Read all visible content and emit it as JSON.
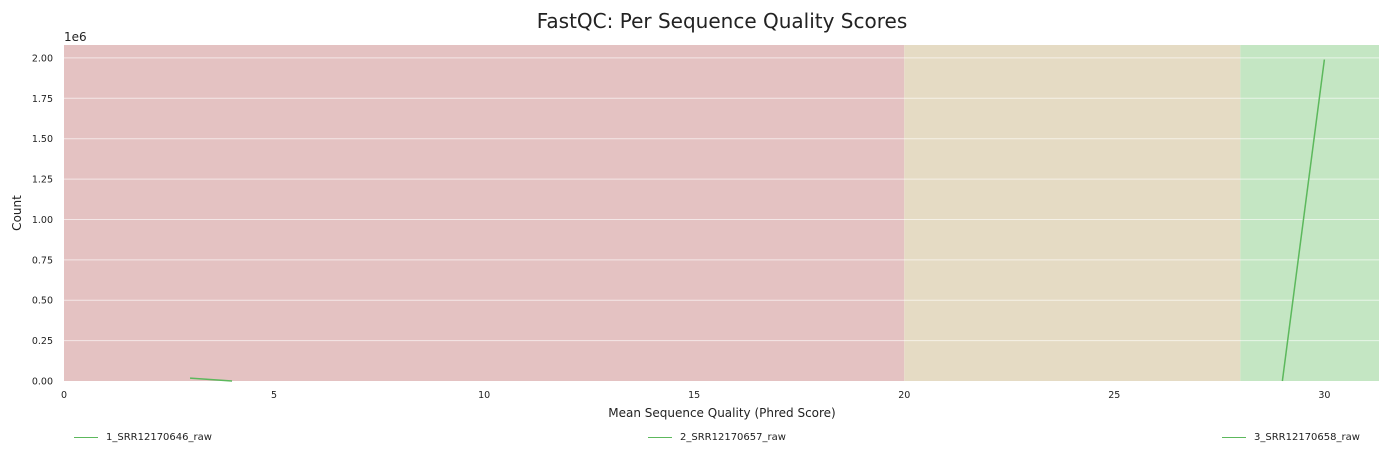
{
  "chart_data": {
    "type": "line",
    "title": "FastQC: Per Sequence Quality Scores",
    "xlabel": "Mean Sequence Quality (Phred Score)",
    "ylabel": "Count",
    "y_scale_label": "1e6",
    "xlim": [
      0,
      31.3
    ],
    "ylim": [
      0,
      2.08
    ],
    "x_ticks": [
      0,
      5,
      10,
      15,
      20,
      25,
      30
    ],
    "x_tick_labels": [
      "0",
      "5",
      "10",
      "15",
      "20",
      "25",
      "30"
    ],
    "y_ticks": [
      0,
      0.25,
      0.5,
      0.75,
      1.0,
      1.25,
      1.5,
      1.75,
      2.0
    ],
    "y_tick_labels": [
      "0.00",
      "0.25",
      "0.50",
      "0.75",
      "1.00",
      "1.25",
      "1.50",
      "1.75",
      "2.00"
    ],
    "grid": "horizontal",
    "legend_position": "bottom",
    "bands": [
      {
        "from": 0,
        "to": 20,
        "color": "#e4c2c2"
      },
      {
        "from": 20,
        "to": 28,
        "color": "#e5dbc4"
      },
      {
        "from": 28,
        "to": 31.3,
        "color": "#c4e6c3"
      }
    ],
    "series": [
      {
        "name": "1_SRR12170646_raw",
        "color": "#5cb85c",
        "x": [
          3,
          4
        ],
        "y": [
          0.018,
          0.0
        ]
      },
      {
        "name": "2_SRR12170657_raw",
        "color": "#5cb85c",
        "x": [],
        "y": []
      },
      {
        "name": "3_SRR12170658_raw",
        "color": "#5cb85c",
        "x": [
          29,
          30
        ],
        "y": [
          0.0,
          1.99
        ]
      }
    ]
  }
}
